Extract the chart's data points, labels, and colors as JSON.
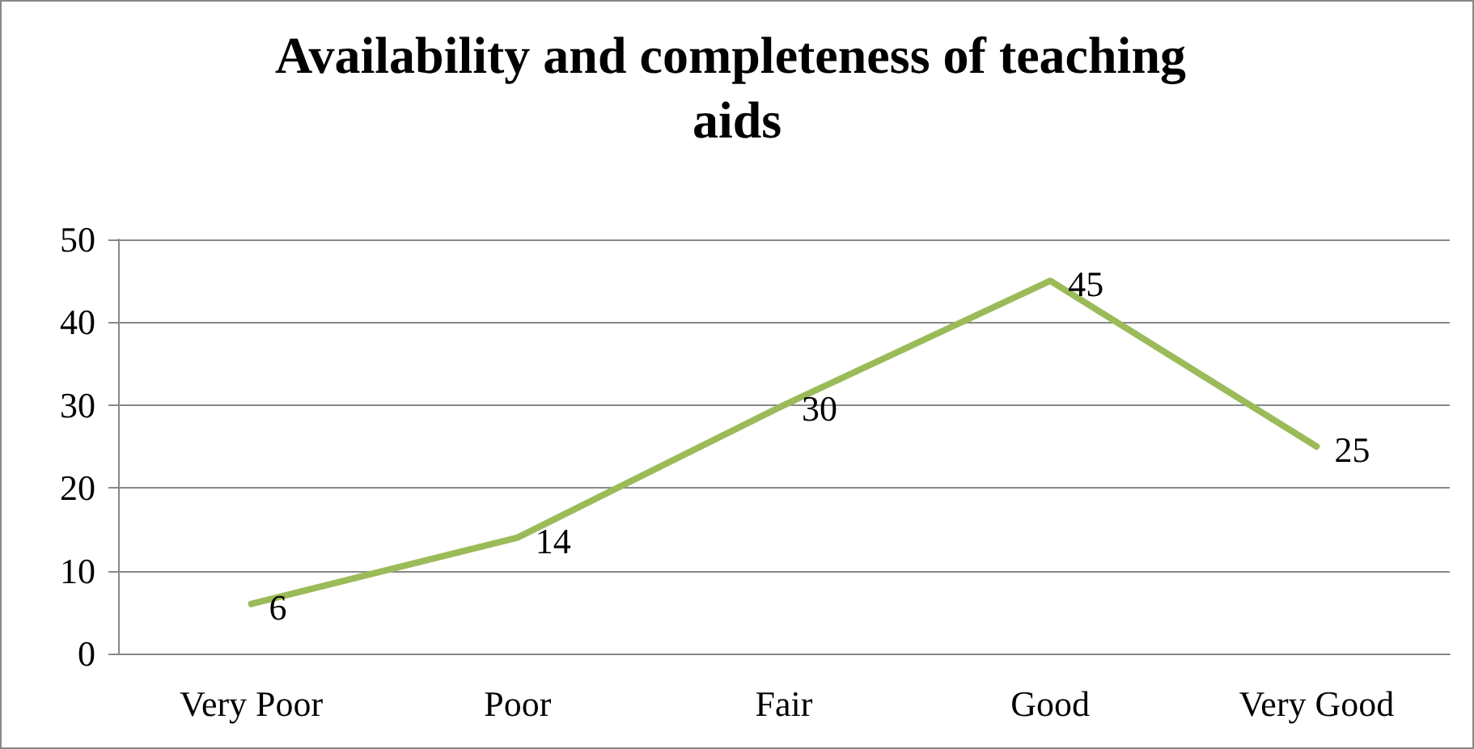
{
  "chart_data": {
    "type": "line",
    "title": "Availability and completeness of teaching aids",
    "categories": [
      "Very Poor",
      "Poor",
      "Fair",
      "Good",
      "Very Good"
    ],
    "series": [
      {
        "color": "#9bbb59",
        "values": [
          6,
          14,
          30,
          45,
          25
        ]
      }
    ],
    "ylim": [
      0,
      50
    ],
    "yticks": [
      0,
      10,
      20,
      30,
      40,
      50
    ],
    "grid": "y",
    "data_labels": true,
    "marker": "none",
    "line_style": "solid"
  }
}
